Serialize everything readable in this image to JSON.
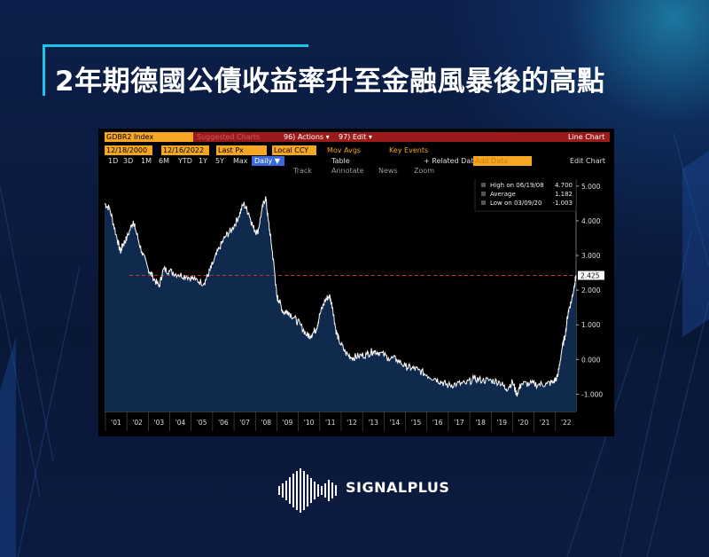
{
  "title": "2年期德國公債收益率升至金融風暴後的高點",
  "terminal": {
    "ticker": "GDBR2 Index",
    "suggested": "Suggested Charts",
    "actions": "96) Actions ▾",
    "edit": "97) Edit ▾",
    "chart_type": "Line Chart",
    "start_date": "12/18/2000",
    "end_date": "12/16/2022",
    "field": "Last Px",
    "currency": "Local CCY",
    "mov_avgs": "Mov Avgs",
    "key_events": "Key Events",
    "periods": [
      "1D",
      "3D",
      "1M",
      "6M",
      "YTD",
      "1Y",
      "5Y",
      "Max"
    ],
    "frequency": "Daily ▼",
    "table": "Table",
    "related": "+ Related Dat",
    "add_data": "Add Data",
    "edit_chart": "Edit Chart",
    "track": "Track",
    "annotate": "Annotate",
    "news": "News",
    "zoom": "Zoom",
    "legend": [
      {
        "label": "Last Price",
        "value": "2.425"
      },
      {
        "label": "High on 06/19/08",
        "value": "4.700"
      },
      {
        "label": "Average",
        "value": "1.182"
      },
      {
        "label": "Low on 03/09/20",
        "value": "-1.003"
      }
    ],
    "last_tag": "2.425"
  },
  "chart_data": {
    "type": "area",
    "x_tick_labels": [
      "'01",
      "'02",
      "'03",
      "'04",
      "'05",
      "'06",
      "'07",
      "'08",
      "'09",
      "'10",
      "'11",
      "'12",
      "'13",
      "'14",
      "'15",
      "'16",
      "'17",
      "'18",
      "'19",
      "'20",
      "'21",
      "'22"
    ],
    "y_tick_labels": [
      "5.000",
      "4.000",
      "3.000",
      "2.000",
      "1.000",
      "0.000",
      "-1.000"
    ],
    "ylim": [
      -1.5,
      5.2
    ],
    "xlim": [
      2000.96,
      2022.96
    ],
    "reference_line": 2.425,
    "x": [
      2000.96,
      2001.2,
      2001.5,
      2001.7,
      2001.8,
      2002.0,
      2002.3,
      2002.4,
      2002.7,
      2003.0,
      2003.2,
      2003.5,
      2003.7,
      2004.0,
      2004.4,
      2004.8,
      2005.2,
      2005.6,
      2005.8,
      2006.0,
      2006.3,
      2006.6,
      2006.9,
      2007.2,
      2007.45,
      2007.7,
      2007.9,
      2008.1,
      2008.3,
      2008.47,
      2008.6,
      2008.75,
      2008.9,
      2009.0,
      2009.1,
      2009.3,
      2009.5,
      2009.8,
      2010.1,
      2010.4,
      2010.6,
      2010.85,
      2011.0,
      2011.25,
      2011.45,
      2011.6,
      2011.75,
      2011.9,
      2012.2,
      2012.5,
      2012.8,
      2013.2,
      2013.5,
      2013.8,
      2014.2,
      2014.6,
      2015.0,
      2015.3,
      2015.6,
      2016.0,
      2016.4,
      2016.7,
      2017.0,
      2017.4,
      2017.8,
      2018.2,
      2018.6,
      2019.0,
      2019.4,
      2019.7,
      2020.0,
      2020.19,
      2020.4,
      2020.8,
      2021.2,
      2021.6,
      2021.9,
      2022.1,
      2022.3,
      2022.45,
      2022.6,
      2022.75,
      2022.9,
      2022.96
    ],
    "y": [
      4.5,
      4.35,
      3.6,
      3.1,
      3.3,
      3.5,
      4.0,
      3.75,
      3.1,
      2.6,
      2.4,
      2.1,
      2.6,
      2.55,
      2.45,
      2.4,
      2.3,
      2.2,
      2.45,
      2.75,
      3.2,
      3.55,
      3.75,
      4.1,
      4.5,
      4.2,
      3.8,
      3.65,
      4.3,
      4.7,
      4.0,
      3.3,
      2.5,
      1.8,
      1.7,
      1.35,
      1.4,
      1.2,
      1.0,
      0.7,
      0.7,
      0.9,
      1.3,
      1.7,
      1.85,
      1.5,
      0.85,
      0.55,
      0.2,
      0.05,
      0.1,
      0.15,
      0.25,
      0.2,
      0.05,
      0.0,
      -0.2,
      -0.25,
      -0.3,
      -0.45,
      -0.55,
      -0.65,
      -0.75,
      -0.7,
      -0.7,
      -0.55,
      -0.6,
      -0.6,
      -0.65,
      -0.85,
      -0.65,
      -1.003,
      -0.7,
      -0.7,
      -0.72,
      -0.7,
      -0.65,
      -0.5,
      0.3,
      0.7,
      1.4,
      1.7,
      2.2,
      2.425
    ]
  }
}
